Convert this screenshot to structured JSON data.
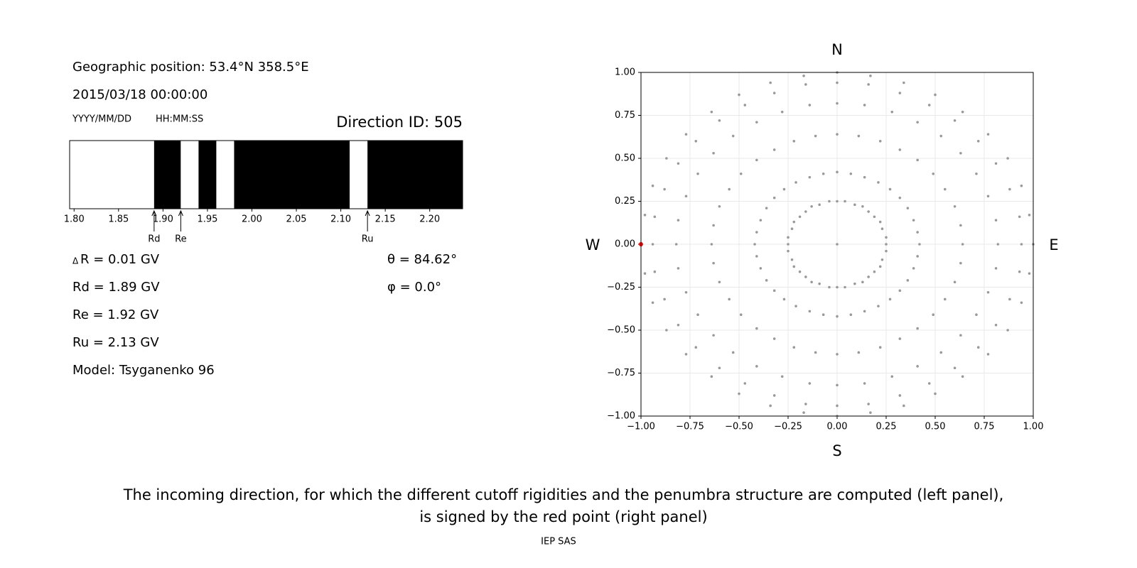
{
  "info": {
    "position": "Geographic position: 53.4°N 358.5°E",
    "datetime": "2015/03/18 00:00:00",
    "date_format": "YYYY/MM/DD",
    "time_format": "HH:MM:SS",
    "direction_id": "Direction ID: 505",
    "delta_r": "R = 0.01 GV",
    "rd": "Rd = 1.89 GV",
    "re": "Re = 1.92 GV",
    "ru": "Ru = 2.13 GV",
    "model": "Model: Tsyganenko 96",
    "theta": "θ = 84.62°",
    "phi": "φ = 0.0°"
  },
  "caption": [
    "The incoming direction, for which the different cutoff rigidities and the penumbra structure are computed (left panel),",
    "is signed by the red point (right panel)"
  ],
  "credit": "IEP SAS",
  "chart_data": [
    {
      "type": "penumbra",
      "xlim": [
        1.795,
        2.237
      ],
      "xticks": [
        {
          "value": 1.8,
          "label": "1.80"
        },
        {
          "value": 1.85,
          "label": "1.85"
        },
        {
          "value": 1.9,
          "label": "1.90"
        },
        {
          "value": 1.95,
          "label": "1.95"
        },
        {
          "value": 2.0,
          "label": "2.00"
        },
        {
          "value": 2.05,
          "label": "2.05"
        },
        {
          "value": 2.1,
          "label": "2.10"
        },
        {
          "value": 2.15,
          "label": "2.15"
        },
        {
          "value": 2.2,
          "label": "2.20"
        }
      ],
      "segments": [
        {
          "start": 1.795,
          "end": 1.89,
          "color": "#ffffff"
        },
        {
          "start": 1.89,
          "end": 1.92,
          "color": "#000000"
        },
        {
          "start": 1.92,
          "end": 1.94,
          "color": "#ffffff"
        },
        {
          "start": 1.94,
          "end": 1.96,
          "color": "#000000"
        },
        {
          "start": 1.96,
          "end": 1.98,
          "color": "#ffffff"
        },
        {
          "start": 1.98,
          "end": 2.11,
          "color": "#000000"
        },
        {
          "start": 2.11,
          "end": 2.13,
          "color": "#ffffff"
        },
        {
          "start": 2.13,
          "end": 2.237,
          "color": "#000000"
        }
      ],
      "markers": [
        {
          "value": 1.89,
          "label": "Rd"
        },
        {
          "value": 1.92,
          "label": "Re"
        },
        {
          "value": 2.13,
          "label": "Ru"
        }
      ]
    },
    {
      "type": "scatter",
      "xlim": [
        -1,
        1
      ],
      "ylim": [
        -1,
        1
      ],
      "grid": true,
      "xticks": [
        {
          "value": -1,
          "label": "−1.00"
        },
        {
          "value": -0.75,
          "label": "−0.75"
        },
        {
          "value": -0.5,
          "label": "−0.50"
        },
        {
          "value": -0.25,
          "label": "−0.25"
        },
        {
          "value": 0,
          "label": "0.00"
        },
        {
          "value": 0.25,
          "label": "0.25"
        },
        {
          "value": 0.5,
          "label": "0.50"
        },
        {
          "value": 0.75,
          "label": "0.75"
        },
        {
          "value": 1,
          "label": "1.00"
        }
      ],
      "yticks": [
        {
          "value": -1,
          "label": "−1.00"
        },
        {
          "value": -0.75,
          "label": "−0.75"
        },
        {
          "value": -0.5,
          "label": "−0.50"
        },
        {
          "value": -0.25,
          "label": "−0.25"
        },
        {
          "value": 0,
          "label": "0.00"
        },
        {
          "value": 0.25,
          "label": "0.25"
        },
        {
          "value": 0.5,
          "label": "0.50"
        },
        {
          "value": 0.75,
          "label": "0.75"
        },
        {
          "value": 1,
          "label": "1.00"
        }
      ],
      "compass": {
        "north": "N",
        "south": "S",
        "west": "W",
        "east": "E"
      },
      "series": [
        {
          "color": "#999999",
          "x": [
            0,
            0.25,
            0.25,
            0.23,
            0.22,
            0.19,
            0.16,
            0.13,
            0.09,
            0.04,
            0,
            -0.04,
            -0.09,
            -0.13,
            -0.16,
            -0.19,
            -0.22,
            -0.23,
            -0.25,
            -0.25,
            -0.25,
            -0.23,
            -0.22,
            -0.19,
            -0.16,
            -0.13,
            -0.09,
            -0.04,
            0,
            0.04,
            0.09,
            0.13,
            0.16,
            0.19,
            0.22,
            0.23,
            0.25,
            0.42,
            0.41,
            0.39,
            0.36,
            0.32,
            0.27,
            0.21,
            0.14,
            0.07,
            0,
            -0.07,
            -0.14,
            -0.21,
            -0.27,
            -0.32,
            -0.36,
            -0.39,
            -0.41,
            -0.42,
            -0.41,
            -0.39,
            -0.36,
            -0.32,
            -0.27,
            -0.21,
            -0.14,
            -0.07,
            0,
            0.07,
            0.14,
            0.21,
            0.27,
            0.32,
            0.36,
            0.39,
            0.41,
            0.64,
            0.63,
            0.6,
            0.55,
            0.49,
            0.41,
            0.32,
            0.22,
            0.11,
            0,
            -0.11,
            -0.22,
            -0.32,
            -0.41,
            -0.49,
            -0.55,
            -0.6,
            -0.63,
            -0.64,
            -0.63,
            -0.6,
            -0.55,
            -0.49,
            -0.41,
            -0.32,
            -0.22,
            -0.11,
            0,
            0.11,
            0.22,
            0.32,
            0.41,
            0.49,
            0.55,
            0.6,
            0.63,
            0.82,
            0.81,
            0.77,
            0.71,
            0.63,
            0.53,
            0.41,
            0.28,
            0.14,
            0,
            -0.14,
            -0.28,
            -0.41,
            -0.53,
            -0.63,
            -0.71,
            -0.77,
            -0.81,
            -0.82,
            -0.81,
            -0.77,
            -0.71,
            -0.63,
            -0.53,
            -0.41,
            -0.28,
            -0.14,
            0,
            0.14,
            0.28,
            0.41,
            0.53,
            0.63,
            0.71,
            0.77,
            0.81,
            0.94,
            0.93,
            0.88,
            0.81,
            0.72,
            0.6,
            0.47,
            0.32,
            0.16,
            0,
            -0.16,
            -0.32,
            -0.47,
            -0.6,
            -0.72,
            -0.81,
            -0.88,
            -0.93,
            -0.94,
            -0.93,
            -0.88,
            -0.81,
            -0.72,
            -0.6,
            -0.47,
            -0.32,
            -0.16,
            0,
            0.16,
            0.32,
            0.47,
            0.6,
            0.72,
            0.81,
            0.88,
            0.93,
            1,
            0.98,
            0.94,
            0.87,
            0.77,
            0.64,
            0.5,
            0.34,
            0.17,
            0,
            -0.17,
            -0.34,
            -0.5,
            -0.64,
            -0.77,
            -0.87,
            -0.94,
            -0.98,
            -1,
            -0.98,
            -0.94,
            -0.87,
            -0.77,
            -0.64,
            -0.5,
            -0.34,
            -0.17,
            0,
            0.17,
            0.34,
            0.5,
            0.64,
            0.77,
            0.87,
            0.94,
            0.98
          ],
          "y": [
            0,
            0,
            0.04,
            0.09,
            0.13,
            0.16,
            0.19,
            0.22,
            0.23,
            0.25,
            0.25,
            0.25,
            0.23,
            0.22,
            0.19,
            0.16,
            0.13,
            0.09,
            0.04,
            0,
            -0.04,
            -0.09,
            -0.13,
            -0.16,
            -0.19,
            -0.22,
            -0.23,
            -0.25,
            -0.25,
            -0.25,
            -0.23,
            -0.22,
            -0.19,
            -0.16,
            -0.13,
            -0.09,
            -0.04,
            0,
            0.07,
            0.14,
            0.21,
            0.27,
            0.32,
            0.36,
            0.39,
            0.41,
            0.42,
            0.41,
            0.39,
            0.36,
            0.32,
            0.27,
            0.21,
            0.14,
            0.07,
            0,
            -0.07,
            -0.14,
            -0.21,
            -0.27,
            -0.32,
            -0.36,
            -0.39,
            -0.41,
            -0.42,
            -0.41,
            -0.39,
            -0.36,
            -0.32,
            -0.27,
            -0.21,
            -0.14,
            -0.07,
            0,
            0.11,
            0.22,
            0.32,
            0.41,
            0.49,
            0.55,
            0.6,
            0.63,
            0.64,
            0.63,
            0.6,
            0.55,
            0.49,
            0.41,
            0.32,
            0.22,
            0.11,
            0,
            -0.11,
            -0.22,
            -0.32,
            -0.41,
            -0.49,
            -0.55,
            -0.6,
            -0.63,
            -0.64,
            -0.63,
            -0.6,
            -0.55,
            -0.49,
            -0.41,
            -0.32,
            -0.22,
            -0.11,
            0,
            0.14,
            0.28,
            0.41,
            0.53,
            0.63,
            0.71,
            0.77,
            0.81,
            0.82,
            0.81,
            0.77,
            0.71,
            0.63,
            0.53,
            0.41,
            0.28,
            0.14,
            0,
            -0.14,
            -0.28,
            -0.41,
            -0.53,
            -0.63,
            -0.71,
            -0.77,
            -0.81,
            -0.82,
            -0.81,
            -0.77,
            -0.71,
            -0.63,
            -0.53,
            -0.41,
            -0.28,
            -0.14,
            0,
            0.16,
            0.32,
            0.47,
            0.6,
            0.72,
            0.81,
            0.88,
            0.93,
            0.94,
            0.93,
            0.88,
            0.81,
            0.72,
            0.6,
            0.47,
            0.32,
            0.16,
            0,
            -0.16,
            -0.32,
            -0.47,
            -0.6,
            -0.72,
            -0.81,
            -0.88,
            -0.93,
            -0.94,
            -0.93,
            -0.88,
            -0.81,
            -0.72,
            -0.6,
            -0.47,
            -0.32,
            -0.16,
            0,
            0.17,
            0.34,
            0.5,
            0.64,
            0.77,
            0.87,
            0.94,
            0.98,
            1,
            0.98,
            0.94,
            0.87,
            0.77,
            0.64,
            0.5,
            0.34,
            0.17,
            0,
            -0.17,
            -0.34,
            -0.5,
            -0.64,
            -0.77,
            -0.87,
            -0.94,
            -0.98,
            -1,
            -0.98,
            -0.94,
            -0.87,
            -0.77,
            -0.64,
            -0.5,
            -0.34,
            -0.17
          ]
        },
        {
          "color": "#ff0000",
          "x": [
            -1
          ],
          "y": [
            0
          ]
        }
      ]
    }
  ]
}
